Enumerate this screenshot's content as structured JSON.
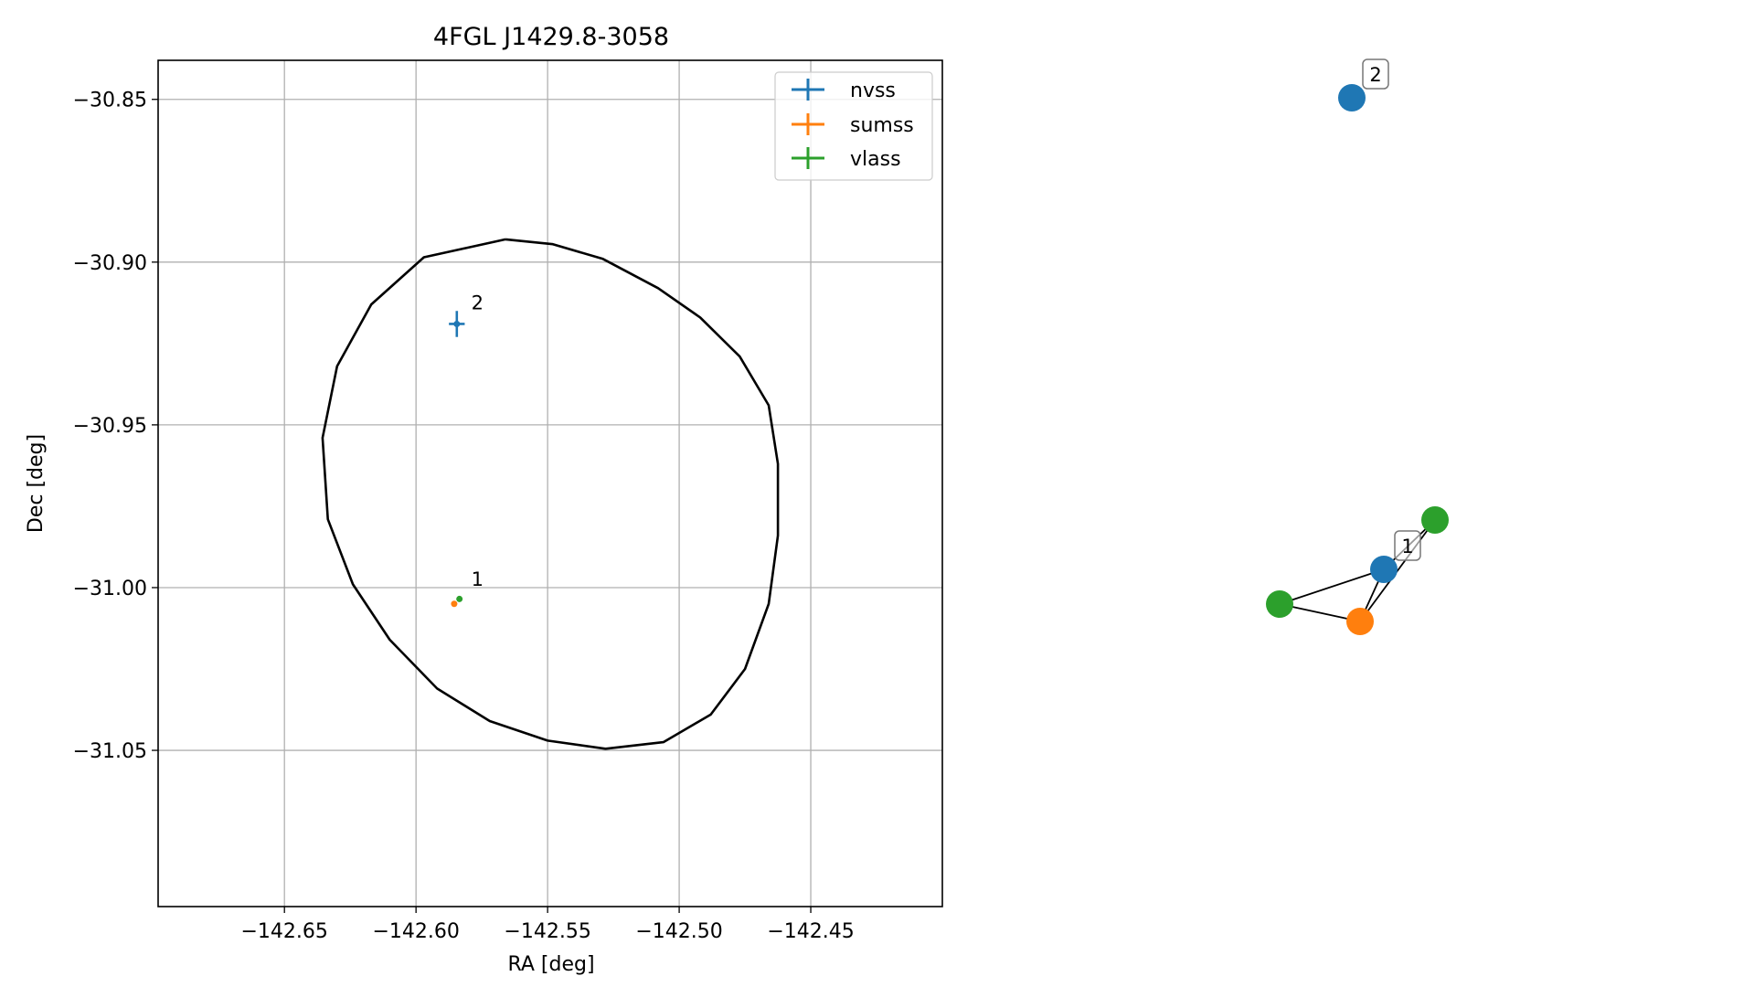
{
  "chart_data": [
    {
      "type": "scatter",
      "title": "4FGL J1429.8-3058",
      "xlabel": "RA [deg]",
      "ylabel": "Dec [deg]",
      "xlim": [
        -142.698,
        -142.4
      ],
      "ylim": [
        -31.098,
        -30.838
      ],
      "xticks": [
        -142.65,
        -142.6,
        -142.55,
        -142.5,
        -142.45
      ],
      "xtick_labels": [
        "−142.65",
        "−142.60",
        "−142.55",
        "−142.50",
        "−142.45"
      ],
      "yticks": [
        -30.85,
        -30.9,
        -30.95,
        -31.0,
        -31.05
      ],
      "ytick_labels": [
        "−30.85",
        "−30.90",
        "−30.95",
        "−31.00",
        "−31.05"
      ],
      "grid": true,
      "legend": {
        "position": "upper-right",
        "entries": [
          "nvss",
          "sumss",
          "vlass"
        ]
      },
      "series": [
        {
          "name": "nvss",
          "color": "#1f77b4",
          "points": [
            {
              "ra": -142.5845,
              "dec": -30.919,
              "err_ra": 0.003,
              "err_dec": 0.004
            }
          ]
        },
        {
          "name": "sumss",
          "color": "#ff7f0e",
          "points": [
            {
              "ra": -142.5855,
              "dec": -31.005,
              "err_ra": 0.0006,
              "err_dec": 0.0006
            }
          ]
        },
        {
          "name": "vlass",
          "color": "#2ca02c",
          "points": [
            {
              "ra": -142.5835,
              "dec": -31.0035,
              "err_ra": 0.0006,
              "err_dec": 0.0006
            }
          ]
        }
      ],
      "annotations": [
        {
          "text": "1",
          "ra": -142.579,
          "dec": -30.9995
        },
        {
          "text": "2",
          "ra": -142.579,
          "dec": -30.9145
        }
      ],
      "ellipse": {
        "color": "#000000",
        "outline": [
          [
            -142.566,
            -30.893
          ],
          [
            -142.548,
            -30.8945
          ],
          [
            -142.529,
            -30.899
          ],
          [
            -142.508,
            -30.908
          ],
          [
            -142.492,
            -30.917
          ],
          [
            -142.477,
            -30.929
          ],
          [
            -142.466,
            -30.944
          ],
          [
            -142.4625,
            -30.962
          ],
          [
            -142.4625,
            -30.984
          ],
          [
            -142.466,
            -31.005
          ],
          [
            -142.475,
            -31.025
          ],
          [
            -142.488,
            -31.039
          ],
          [
            -142.506,
            -31.0475
          ],
          [
            -142.528,
            -31.0495
          ],
          [
            -142.55,
            -31.047
          ],
          [
            -142.572,
            -31.041
          ],
          [
            -142.592,
            -31.031
          ],
          [
            -142.61,
            -31.016
          ],
          [
            -142.624,
            -30.999
          ],
          [
            -142.6335,
            -30.979
          ],
          [
            -142.6355,
            -30.954
          ],
          [
            -142.63,
            -30.932
          ],
          [
            -142.617,
            -30.913
          ],
          [
            -142.597,
            -30.8985
          ],
          [
            -142.566,
            -30.893
          ]
        ]
      }
    },
    {
      "type": "network",
      "nodes": [
        {
          "id": "n2",
          "label": "2",
          "color": "#1f77b4"
        },
        {
          "id": "n1",
          "label": "1",
          "color": "#1f77b4"
        },
        {
          "id": "g1",
          "label": "",
          "color": "#2ca02c"
        },
        {
          "id": "g2",
          "label": "",
          "color": "#2ca02c"
        },
        {
          "id": "o1",
          "label": "",
          "color": "#ff7f0e"
        }
      ],
      "edges": [
        [
          "g2",
          "n1"
        ],
        [
          "g2",
          "o1"
        ],
        [
          "g1",
          "n1"
        ],
        [
          "g1",
          "o1"
        ],
        [
          "n1",
          "o1"
        ]
      ]
    }
  ]
}
